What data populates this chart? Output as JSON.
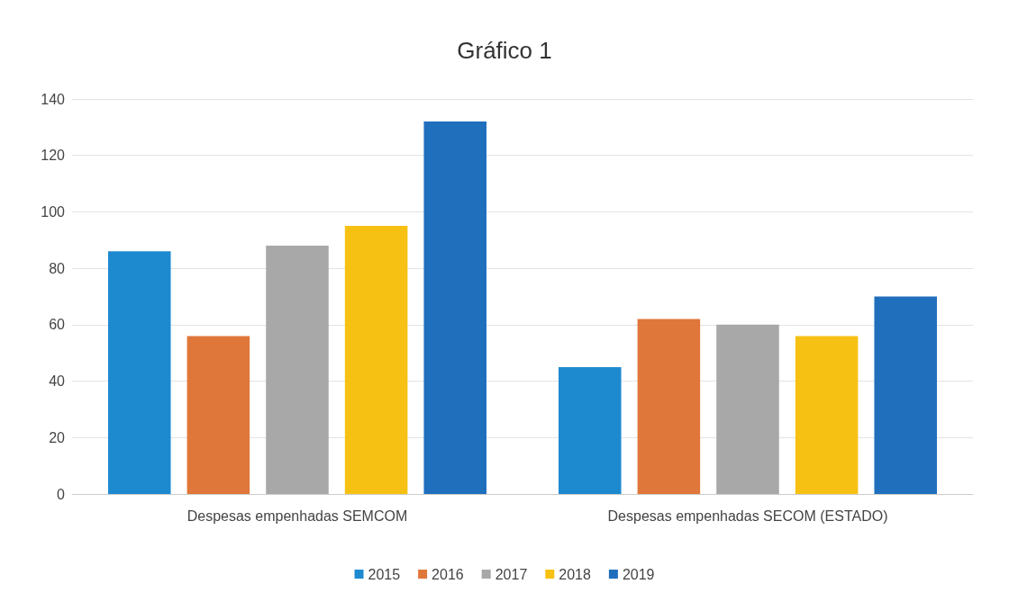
{
  "chart_data": {
    "type": "bar",
    "title": "Gráfico 1",
    "categories": [
      "Despesas empenhadas SEMCOM",
      "Despesas empenhadas SECOM (ESTADO)"
    ],
    "series": [
      {
        "name": "2015",
        "color": "#1d8ad0",
        "values": [
          86,
          45
        ]
      },
      {
        "name": "2016",
        "color": "#e0773a",
        "values": [
          56,
          62
        ]
      },
      {
        "name": "2017",
        "color": "#a8a8a8",
        "values": [
          88,
          60
        ]
      },
      {
        "name": "2018",
        "color": "#f7c114",
        "values": [
          95,
          56
        ]
      },
      {
        "name": "2019",
        "color": "#1f6fbd",
        "values": [
          132,
          70
        ]
      }
    ],
    "ylim": [
      0,
      140
    ],
    "yticks": [
      0,
      20,
      40,
      60,
      80,
      100,
      120,
      140
    ],
    "grid": "y",
    "legend": "bottom"
  }
}
